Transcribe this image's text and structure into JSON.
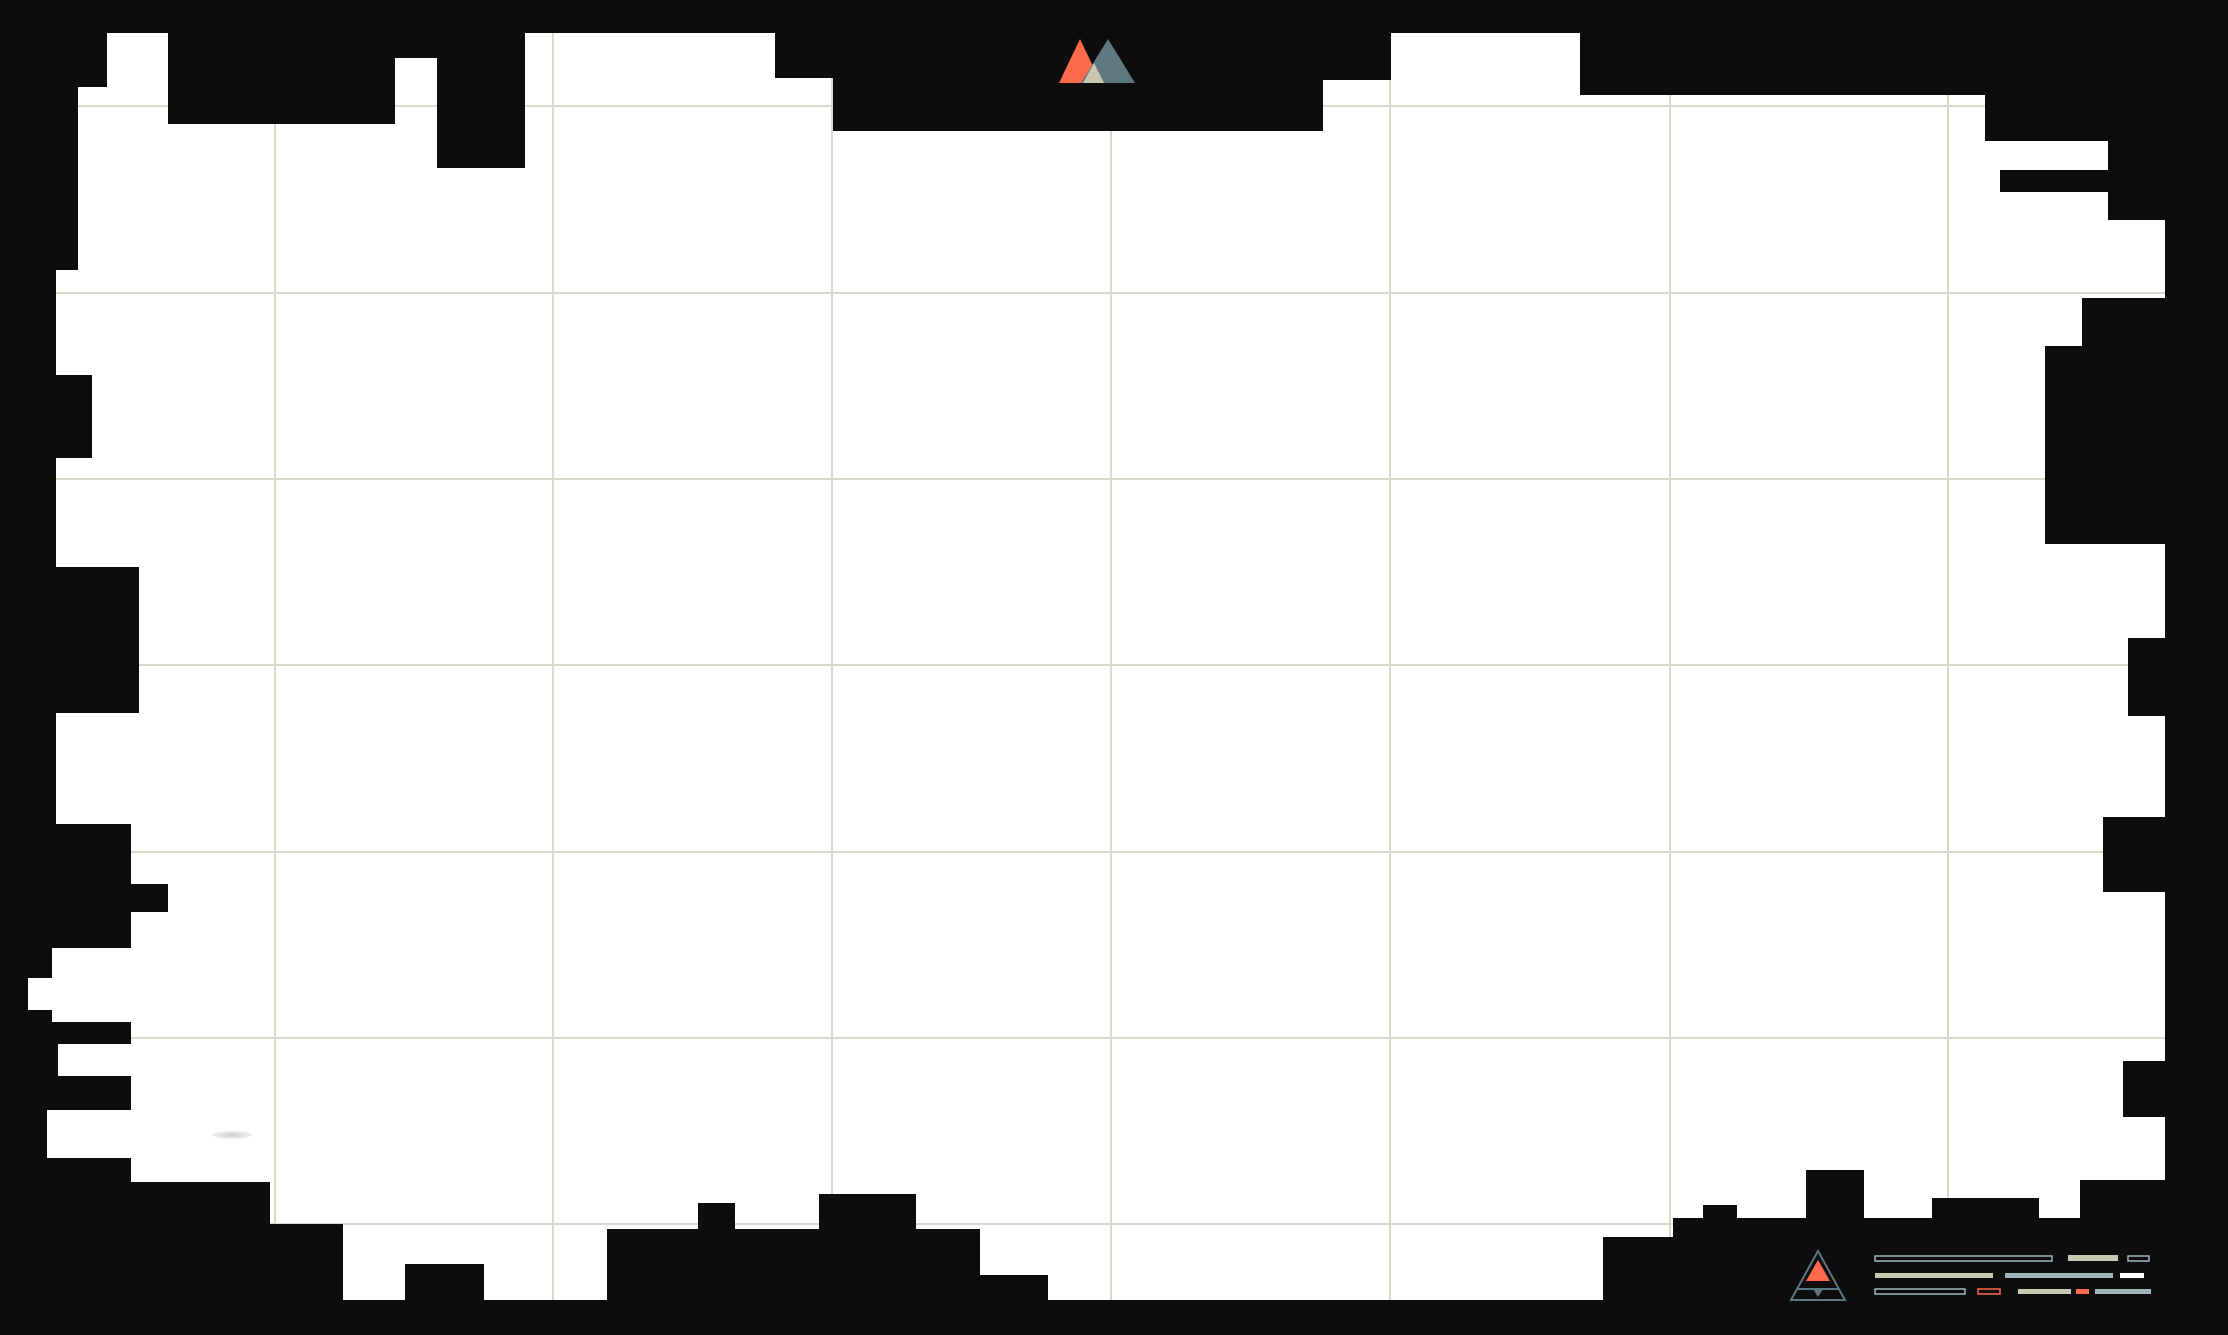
{
  "screen": {
    "description_free": true
  },
  "map": {
    "background_color": "#0d0d0d",
    "paper_color": "#ffffff",
    "grid_color": "#d8d8cc",
    "logo_icon": "twin-mountain-peaks-icon",
    "legend_icon": "triangle-emblem-icon",
    "colors": {
      "accent": "#ff6a4d",
      "slate": "#5f7780",
      "sand": "#c9c8b2",
      "mist": "#9fb6b8"
    }
  }
}
